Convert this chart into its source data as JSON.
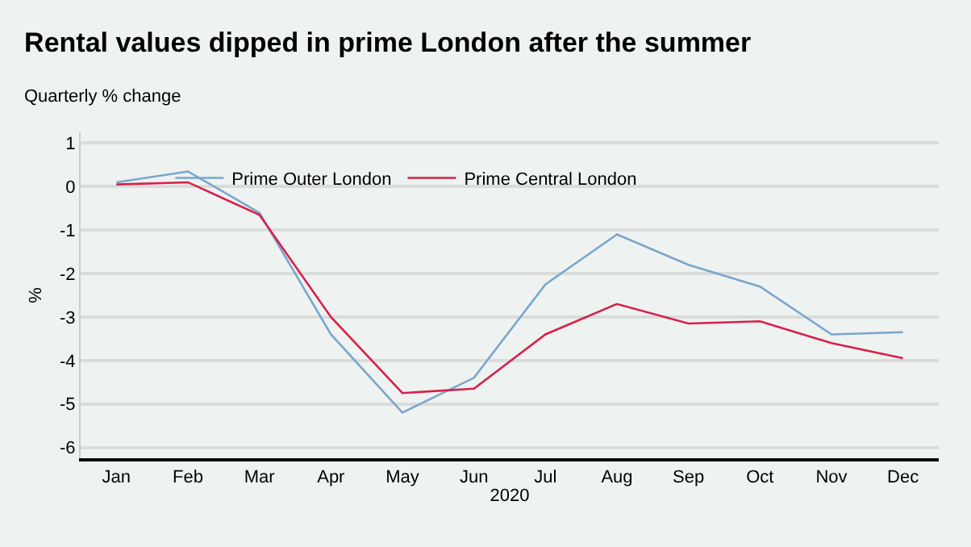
{
  "chart_data": {
    "type": "line",
    "title": "Rental values dipped in prime London after the summer",
    "subtitle": "Quarterly % change",
    "xlabel": "2020",
    "ylabel": "%",
    "categories": [
      "Jan",
      "Feb",
      "Mar",
      "Apr",
      "May",
      "Jun",
      "Jul",
      "Aug",
      "Sep",
      "Oct",
      "Nov",
      "Dec"
    ],
    "series": [
      {
        "name": "Prime Outer London",
        "color": "#7aa6cc",
        "values": [
          0.1,
          0.35,
          -0.6,
          -3.4,
          -5.2,
          -4.4,
          -2.25,
          -1.1,
          -1.8,
          -2.3,
          -3.4,
          -3.35
        ]
      },
      {
        "name": "Prime Central London",
        "color": "#d8204a",
        "values": [
          0.05,
          0.1,
          -0.65,
          -3.0,
          -4.75,
          -4.65,
          -3.4,
          -2.7,
          -3.15,
          -3.1,
          -3.6,
          -3.95
        ]
      }
    ],
    "ylim": [
      -6.25,
      1.25
    ],
    "yticks": [
      -6,
      -5,
      -4,
      -3,
      -2,
      -1,
      0,
      1
    ],
    "grid": "y",
    "legend": "top",
    "marker": "none",
    "line_style": "solid"
  }
}
